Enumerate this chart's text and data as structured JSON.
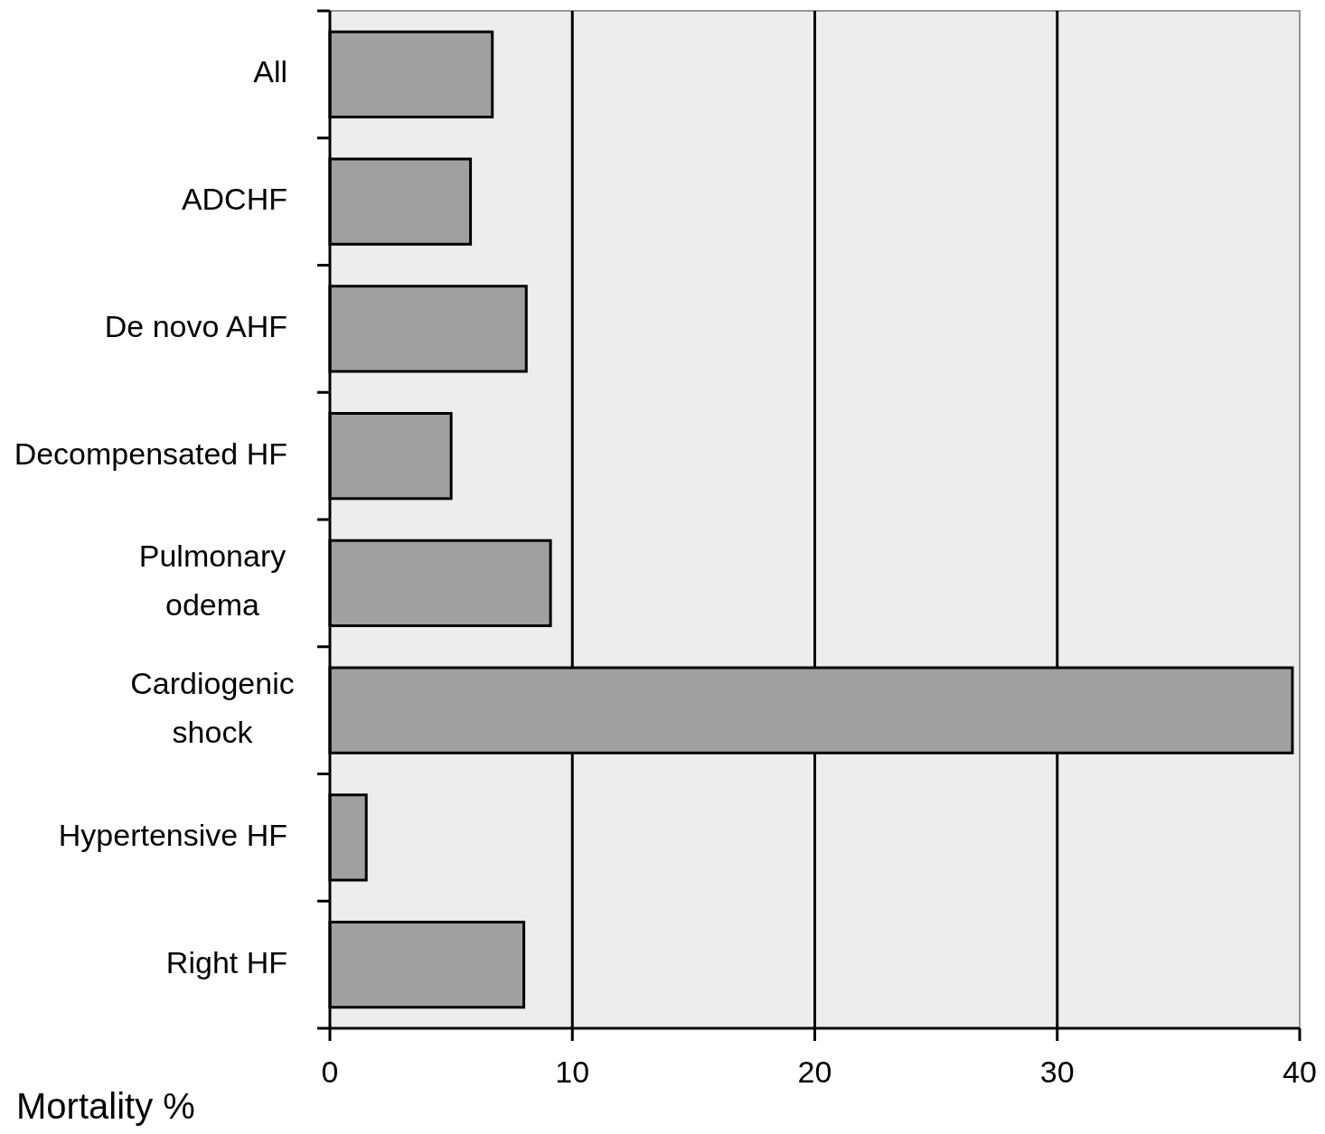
{
  "chart_data": {
    "type": "bar",
    "orientation": "horizontal",
    "xlabel": "Mortality %",
    "categories": [
      "All",
      "ADCHF",
      "De novo AHF",
      "Decompensated HF",
      "Pulmonary\nodema",
      "Cardiogenic\nshock",
      "Hypertensive HF",
      "Right HF"
    ],
    "values": [
      6.7,
      5.8,
      8.1,
      5.0,
      9.1,
      39.7,
      1.5,
      8.0
    ],
    "color": "#a0a0a0",
    "xlim": [
      0,
      40
    ],
    "xticks": [
      0,
      10,
      20,
      30,
      40
    ],
    "grid": "x"
  }
}
